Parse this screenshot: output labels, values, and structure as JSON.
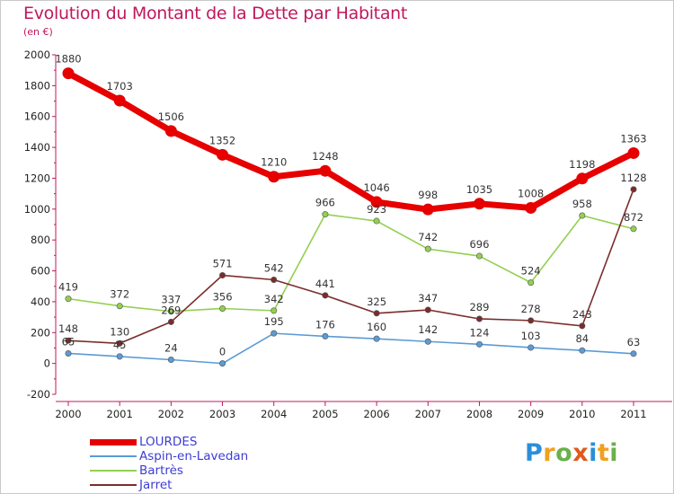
{
  "title": "Evolution du Montant de la Dette par Habitant",
  "subtitle": "(en €)",
  "logo": {
    "letters": [
      "P",
      "r",
      "o",
      "x",
      "i",
      "t",
      "i"
    ],
    "colors": [
      "#2a8fd8",
      "#f0a020",
      "#6ab04c",
      "#e05a1a",
      "#2a8fd8",
      "#f0a020",
      "#6ab04c"
    ]
  },
  "chart_data": {
    "type": "line",
    "title": "Evolution du Montant de la Dette par Habitant",
    "ylabel": "(en €)",
    "x": [
      "2000",
      "2001",
      "2002",
      "2003",
      "2004",
      "2005",
      "2006",
      "2007",
      "2008",
      "2009",
      "2010",
      "2011"
    ],
    "ylim": [
      -200,
      2000
    ],
    "yticks": [
      -200,
      0,
      200,
      400,
      600,
      800,
      1000,
      1200,
      1400,
      1600,
      1800,
      2000
    ],
    "grid": false,
    "legend": "bottom-left",
    "series": [
      {
        "name": "Aspin-en-Lavedan",
        "color": "#5b9bd5",
        "values": [
          65,
          45,
          24,
          0,
          195,
          176,
          160,
          142,
          124,
          103,
          84,
          63
        ],
        "labels": [
          "65",
          "45",
          "24",
          "0",
          "195",
          "176",
          "160",
          "142",
          "124",
          "103",
          "84",
          "63"
        ]
      },
      {
        "name": "Bartrès",
        "color": "#92d050",
        "values": [
          419,
          372,
          337,
          356,
          342,
          966,
          923,
          742,
          696,
          524,
          958,
          872
        ],
        "labels": [
          "419",
          "372",
          "337",
          "356",
          "342",
          "966",
          "923",
          "742",
          "696",
          "524",
          "958",
          "872"
        ]
      },
      {
        "name": "Jarret",
        "color": "#7b2c2c",
        "values": [
          148,
          130,
          269,
          571,
          542,
          441,
          325,
          347,
          289,
          278,
          243,
          1128
        ],
        "labels": [
          "148",
          "130",
          "269",
          "571",
          "542",
          "441",
          "325",
          "347",
          "289",
          "278",
          "243",
          "1128"
        ]
      },
      {
        "name": "LOURDES",
        "color": "#e60000",
        "values": [
          1880,
          1703,
          1506,
          1352,
          1210,
          1248,
          1046,
          998,
          1035,
          1008,
          1198,
          1363
        ],
        "labels": [
          "1880",
          "1703",
          "1506",
          "1352",
          "1210",
          "1248",
          "1046",
          "998",
          "1035",
          "1008",
          "1198",
          "1363"
        ]
      }
    ],
    "legend_order": [
      "LOURDES",
      "Aspin-en-Lavedan",
      "Bartrès",
      "Jarret"
    ]
  }
}
